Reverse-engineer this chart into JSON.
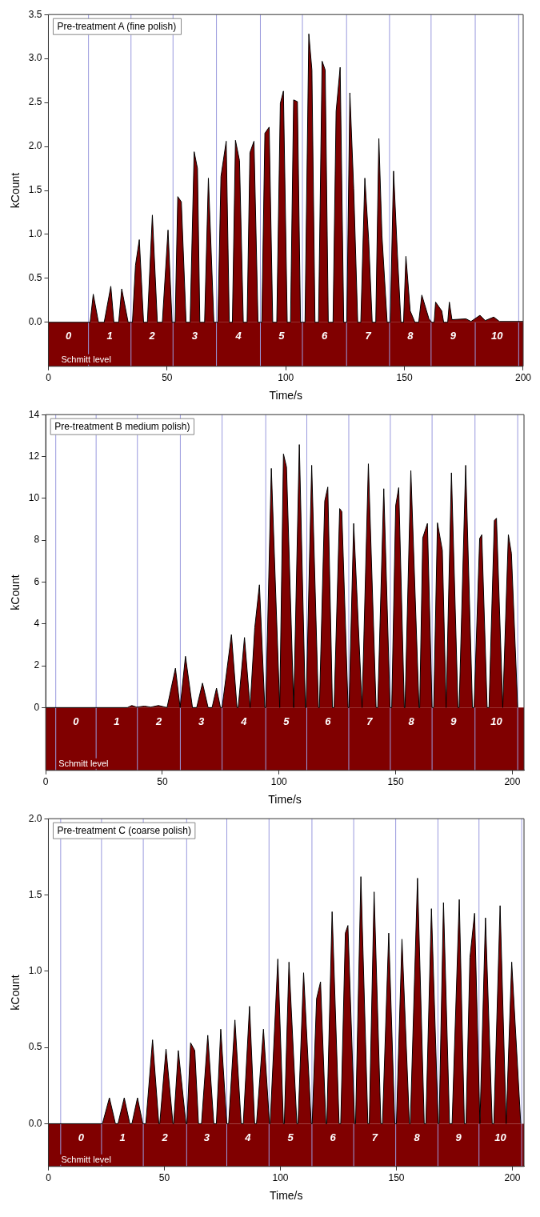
{
  "chart_data": [
    {
      "type": "area",
      "title": "Pre-treatment A (fine polish)",
      "xlabel": "Time/s",
      "ylabel": "kCount",
      "xlim": [
        0,
        200
      ],
      "xticks": [
        0,
        50,
        100,
        150,
        200
      ],
      "ylim": [
        -0.5,
        3.5
      ],
      "yticks": [
        {
          "value": 0,
          "label": "0.0"
        },
        {
          "value": 0.5,
          "label": "0.5"
        },
        {
          "value": 1,
          "label": "1.0"
        },
        {
          "value": 1.5,
          "label": "1.5"
        },
        {
          "value": 2,
          "label": "2.0"
        },
        {
          "value": 2.5,
          "label": "2.5"
        },
        {
          "value": 3,
          "label": "3.0"
        },
        {
          "value": 3.5,
          "label": "3.5"
        }
      ],
      "series": [
        {
          "color": "#800000",
          "x": [
            0,
            17.6,
            18.9,
            21.1,
            23.5,
            26.3,
            27.6,
            29.6,
            30.9,
            33.6,
            35.4,
            36.7,
            38.3,
            40.1,
            41.7,
            43.8,
            45.9,
            48.0,
            50.4,
            52.1,
            53.4,
            54.5,
            56.0,
            58.0,
            59.7,
            61.4,
            62.8,
            63.8,
            65.8,
            67.4,
            69.7,
            71.4,
            72.7,
            74.9,
            76.2,
            77.5,
            78.8,
            80.5,
            82.1,
            83.7,
            84.9,
            86.6,
            88.3,
            89.9,
            91.2,
            93.0,
            94.5,
            96.2,
            97.7,
            99.0,
            100.6,
            102.0,
            103.3,
            104.9,
            106.2,
            108.1,
            109.7,
            111.0,
            112.3,
            113.8,
            115.3,
            116.6,
            117.9,
            119.9,
            121.2,
            122.9,
            124.4,
            125.7,
            127.0,
            128.6,
            130.3,
            131.6,
            133.3,
            134.9,
            136.4,
            137.9,
            139.2,
            140.5,
            142.7,
            144.0,
            145.4,
            147.0,
            148.5,
            149.6,
            150.6,
            152.4,
            154.4,
            156.0,
            157.3,
            160.3,
            161.5,
            162.5,
            163.1,
            165.7,
            166.5,
            168.2,
            168.9,
            170.0,
            175.9,
            178,
            181.8,
            184,
            187.6,
            190,
            200
          ],
          "values": [
            0,
            0,
            0.32,
            0,
            0,
            0.41,
            0,
            0,
            0.38,
            0,
            0,
            0.65,
            0.94,
            0,
            0,
            1.22,
            0,
            0,
            1.05,
            0,
            0,
            1.43,
            1.37,
            0,
            0,
            1.94,
            1.75,
            0,
            0,
            1.64,
            0,
            0,
            1.66,
            2.06,
            0,
            0,
            2.07,
            1.84,
            0,
            0,
            1.93,
            2.06,
            0,
            0,
            2.15,
            2.22,
            0,
            0,
            2.49,
            2.63,
            0,
            0,
            2.53,
            2.51,
            0,
            0,
            3.28,
            2.87,
            0,
            0,
            2.97,
            2.87,
            0,
            0,
            2.4,
            2.9,
            0,
            0,
            2.61,
            1.52,
            0,
            0,
            1.64,
            0.94,
            0,
            0,
            2.09,
            0.99,
            0,
            0,
            1.72,
            0.78,
            0,
            0,
            0.75,
            0.13,
            0,
            0,
            0.31,
            0.04,
            0,
            0,
            0.23,
            0.13,
            0,
            0,
            0.23,
            0.03,
            0.04,
            0.01,
            0.08,
            0.02,
            0.06,
            0.01,
            0.01
          ]
        }
      ],
      "ref_lines": [
        {
          "axis": "x",
          "value": 16.9,
          "color": "#9999dd"
        },
        {
          "axis": "x",
          "value": 34.8,
          "color": "#9999dd"
        },
        {
          "axis": "x",
          "value": 52.5,
          "color": "#9999dd"
        },
        {
          "axis": "x",
          "value": 70.8,
          "color": "#9999dd"
        },
        {
          "axis": "x",
          "value": 89.3,
          "color": "#9999dd"
        },
        {
          "axis": "x",
          "value": 107.0,
          "color": "#9999dd"
        },
        {
          "axis": "x",
          "value": 125.6,
          "color": "#9999dd"
        },
        {
          "axis": "x",
          "value": 143.7,
          "color": "#9999dd"
        },
        {
          "axis": "x",
          "value": 161.2,
          "color": "#9999dd"
        },
        {
          "axis": "x",
          "value": 179.8,
          "color": "#9999dd"
        },
        {
          "axis": "x",
          "value": 198.1,
          "color": "#9999dd"
        }
      ],
      "bands": [
        {
          "axis": "y",
          "from": -0.5,
          "to": 0,
          "label": "Schmitt level",
          "color": "#800000"
        }
      ],
      "annotations": [
        "0",
        "1",
        "2",
        "3",
        "4",
        "5",
        "6",
        "7",
        "8",
        "9",
        "10"
      ]
    },
    {
      "type": "area",
      "title": "Pre-treatment B medium polish)",
      "xlabel": "Time/s",
      "ylabel": "kCount",
      "xlim": [
        0,
        205
      ],
      "xticks": [
        0,
        50,
        100,
        150,
        200
      ],
      "ylim": [
        -3,
        14
      ],
      "yticks": [
        0,
        2,
        4,
        6,
        8,
        10,
        12,
        14
      ],
      "series": [
        {
          "color": "#800000",
          "x": [
            0,
            35,
            36.9,
            39,
            42.3,
            45,
            48.3,
            52.0,
            55.6,
            57.6,
            59.9,
            62.9,
            64.7,
            67.2,
            69.6,
            71.3,
            73.2,
            74.9,
            75.6,
            79.6,
            82.0,
            82.5,
            85.2,
            87.6,
            89.6,
            91.6,
            93.9,
            94.3,
            96.7,
            100.3,
            101.9,
            103.2,
            106.3,
            108.7,
            111.3,
            111.6,
            114.0,
            116.9,
            117.3,
            119.6,
            120.9,
            122.9,
            123.6,
            126.0,
            126.9,
            129.6,
            130.0,
            132.0,
            135.6,
            138.3,
            141.6,
            142.3,
            144.9,
            147.6,
            148.3,
            150.0,
            151.3,
            153.7,
            154.0,
            156.5,
            160.0,
            160.3,
            161.6,
            163.6,
            165.6,
            166.3,
            167.9,
            170.0,
            171.6,
            173.9,
            176.7,
            177.2,
            180.0,
            182.9,
            183.6,
            186.0,
            186.9,
            189.2,
            190.0,
            192.3,
            193.2,
            195.9,
            198.3,
            199.6,
            202.3
          ],
          "values": [
            0,
            0,
            0.1,
            0.02,
            0.07,
            0.02,
            0.1,
            0,
            1.88,
            0,
            2.45,
            0,
            0,
            1.17,
            0,
            0,
            0.93,
            0,
            0,
            3.49,
            0,
            0,
            3.35,
            0,
            3.81,
            5.87,
            0,
            0,
            11.43,
            0,
            12.12,
            11.5,
            0,
            12.57,
            0,
            0,
            11.58,
            0,
            0,
            9.87,
            10.54,
            0,
            0,
            9.51,
            9.37,
            0,
            0,
            8.8,
            0,
            11.65,
            0,
            0,
            10.46,
            0,
            0,
            9.65,
            10.51,
            0,
            0,
            11.33,
            0,
            0,
            8.11,
            8.8,
            0,
            0,
            8.83,
            7.51,
            0,
            11.22,
            0,
            0,
            11.58,
            0,
            0,
            8.08,
            8.26,
            0,
            0,
            8.94,
            9.05,
            0,
            8.26,
            7.37,
            0
          ]
        }
      ],
      "ref_lines": [
        {
          "axis": "x",
          "value": 4.3,
          "color": "#9999dd"
        },
        {
          "axis": "x",
          "value": 21.6,
          "color": "#9999dd"
        },
        {
          "axis": "x",
          "value": 39.3,
          "color": "#9999dd"
        },
        {
          "axis": "x",
          "value": 57.7,
          "color": "#9999dd"
        },
        {
          "axis": "x",
          "value": 75.6,
          "color": "#9999dd"
        },
        {
          "axis": "x",
          "value": 94.3,
          "color": "#9999dd"
        },
        {
          "axis": "x",
          "value": 111.9,
          "color": "#9999dd"
        },
        {
          "axis": "x",
          "value": 129.9,
          "color": "#9999dd"
        },
        {
          "axis": "x",
          "value": 147.7,
          "color": "#9999dd"
        },
        {
          "axis": "x",
          "value": 165.6,
          "color": "#9999dd"
        },
        {
          "axis": "x",
          "value": 184.0,
          "color": "#9999dd"
        },
        {
          "axis": "x",
          "value": 202.3,
          "color": "#9999dd"
        }
      ],
      "bands": [
        {
          "axis": "y",
          "from": -3,
          "to": 0,
          "label": "Schmitt level",
          "color": "#800000"
        }
      ],
      "annotations": [
        "0",
        "1",
        "2",
        "3",
        "4",
        "5",
        "6",
        "7",
        "8",
        "9",
        "10"
      ]
    },
    {
      "type": "area",
      "title": "Pre-treatment C (coarse polish)",
      "xlabel": "Time/s",
      "ylabel": "kCount",
      "xlim": [
        0,
        205
      ],
      "xticks": [
        0,
        50,
        100,
        150,
        200
      ],
      "ylim": [
        -0.28,
        2
      ],
      "yticks": [
        {
          "value": 0,
          "label": "0.0"
        },
        {
          "value": 0.5,
          "label": "0.5"
        },
        {
          "value": 1,
          "label": "1.0"
        },
        {
          "value": 1.5,
          "label": "1.5"
        },
        {
          "value": 2,
          "label": "2.0"
        }
      ],
      "series": [
        {
          "color": "#800000",
          "x": [
            0,
            23.3,
            26.3,
            28.9,
            30.0,
            32.7,
            35.1,
            36.0,
            38.4,
            40.7,
            42.0,
            44.9,
            47.6,
            48.0,
            50.7,
            53.7,
            54.0,
            56.0,
            59.3,
            59.7,
            61.3,
            63.1,
            64.7,
            66.0,
            68.7,
            71.3,
            72.4,
            74.3,
            76.9,
            77.7,
            80.4,
            83.1,
            84.0,
            86.7,
            88.9,
            89.7,
            92.7,
            95.3,
            95.6,
            98.9,
            101.3,
            101.7,
            103.7,
            107.1,
            107.6,
            110.0,
            113.3,
            113.7,
            115.6,
            117.3,
            119.6,
            120.0,
            122.3,
            125.3,
            126.0,
            128.0,
            129.1,
            132.0,
            132.4,
            134.7,
            137.7,
            138.3,
            140.4,
            143.3,
            144.0,
            146.7,
            149.3,
            150.0,
            152.4,
            155.6,
            156.0,
            159.1,
            162.0,
            162.7,
            165.1,
            168.0,
            168.4,
            170.3,
            172.9,
            174.0,
            177.1,
            179.3,
            180.0,
            181.7,
            183.7,
            186.0,
            188.4,
            191.3,
            192.0,
            194.7,
            197.3,
            199.7,
            203.6
          ],
          "values": [
            0,
            0,
            0.17,
            0,
            0,
            0.17,
            0,
            0,
            0.17,
            0,
            0,
            0.55,
            0,
            0,
            0.49,
            0,
            0,
            0.48,
            0,
            0,
            0.53,
            0.48,
            0,
            0,
            0.58,
            0,
            0,
            0.62,
            0,
            0,
            0.68,
            0,
            0,
            0.77,
            0,
            0,
            0.62,
            0,
            0,
            1.08,
            0,
            0,
            1.06,
            0,
            0,
            0.99,
            0,
            0,
            0.82,
            0.93,
            0,
            0,
            1.39,
            0,
            0,
            1.25,
            1.3,
            0,
            0,
            1.62,
            0,
            0,
            1.52,
            0,
            0,
            1.25,
            0,
            0,
            1.21,
            0,
            0,
            1.61,
            0,
            0,
            1.41,
            0,
            0,
            1.45,
            0,
            0,
            1.47,
            0,
            0,
            1.09,
            1.38,
            0,
            1.35,
            0,
            0,
            1.43,
            0,
            1.06,
            0
          ]
        }
      ],
      "ref_lines": [
        {
          "axis": "x",
          "value": 5.3,
          "color": "#9999dd"
        },
        {
          "axis": "x",
          "value": 22.9,
          "color": "#9999dd"
        },
        {
          "axis": "x",
          "value": 40.9,
          "color": "#9999dd"
        },
        {
          "axis": "x",
          "value": 59.6,
          "color": "#9999dd"
        },
        {
          "axis": "x",
          "value": 76.9,
          "color": "#9999dd"
        },
        {
          "axis": "x",
          "value": 95.1,
          "color": "#9999dd"
        },
        {
          "axis": "x",
          "value": 113.6,
          "color": "#9999dd"
        },
        {
          "axis": "x",
          "value": 131.6,
          "color": "#9999dd"
        },
        {
          "axis": "x",
          "value": 149.7,
          "color": "#9999dd"
        },
        {
          "axis": "x",
          "value": 167.9,
          "color": "#9999dd"
        },
        {
          "axis": "x",
          "value": 185.6,
          "color": "#9999dd"
        },
        {
          "axis": "x",
          "value": 204.0,
          "color": "#9999dd"
        }
      ],
      "bands": [
        {
          "axis": "y",
          "from": -0.28,
          "to": 0,
          "label": "Schmitt level",
          "color": "#800000"
        }
      ],
      "annotations": [
        "0",
        "1",
        "2",
        "3",
        "4",
        "5",
        "6",
        "7",
        "8",
        "9",
        "10"
      ]
    }
  ]
}
